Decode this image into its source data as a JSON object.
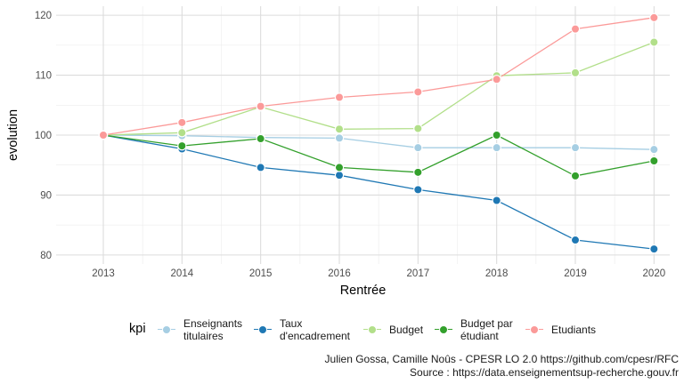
{
  "chart_data": {
    "type": "line",
    "xlabel": "Rentrée",
    "ylabel": "evolution",
    "x": [
      2013,
      2014,
      2015,
      2016,
      2017,
      2018,
      2019,
      2020
    ],
    "ylim": [
      78.5,
      121.5
    ],
    "yticks": [
      80,
      90,
      100,
      110,
      120
    ],
    "grid": true,
    "legend_title": "kpi",
    "legend_position": "bottom",
    "series": [
      {
        "name": "Enseignants\ntitulaires",
        "color": "#a6cee3",
        "values": [
          100,
          99.9,
          99.6,
          99.5,
          97.9,
          97.9,
          97.9,
          97.6
        ]
      },
      {
        "name": "Taux\nd'encadrement",
        "color": "#1f78b4",
        "values": [
          100,
          97.7,
          94.6,
          93.3,
          90.9,
          89.1,
          82.5,
          81.0
        ]
      },
      {
        "name": "Budget",
        "color": "#b2df8a",
        "values": [
          100,
          100.4,
          104.7,
          101.0,
          101.1,
          109.9,
          110.4,
          115.5
        ]
      },
      {
        "name": "Budget par\nétudiant",
        "color": "#33a02c",
        "values": [
          100,
          98.2,
          99.4,
          94.6,
          93.8,
          100.0,
          93.2,
          95.7
        ]
      },
      {
        "name": "Etudiants",
        "color": "#fb9a99",
        "values": [
          100,
          102.1,
          104.8,
          106.3,
          107.2,
          109.3,
          117.7,
          119.6
        ]
      }
    ]
  },
  "caption": {
    "line1": "Julien Gossa, Camille Noûs - CPESR LO 2.0 https://github.com/cpesr/RFC",
    "line2": "Source : https://data.enseignementsup-recherche.gouv.fr"
  }
}
